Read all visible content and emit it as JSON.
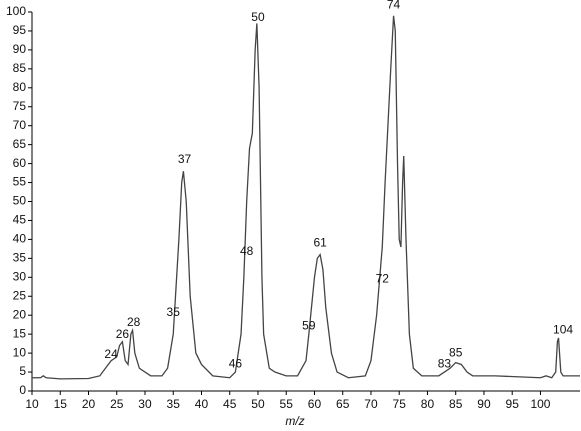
{
  "chart_data": {
    "type": "line",
    "x_label": "m/z",
    "x": [
      10,
      11.5,
      12,
      12.5,
      15,
      20,
      22,
      23,
      24,
      25,
      25.5,
      26,
      26.5,
      27,
      27.5,
      27.8,
      28.2,
      29,
      31,
      33,
      34,
      35,
      36,
      36.5,
      36.8,
      37.3,
      38,
      39,
      40,
      42,
      45,
      46,
      47,
      47.5,
      48,
      48.5,
      49,
      49.5,
      49.8,
      50.2,
      50.7,
      51,
      52,
      53,
      55,
      57,
      58.5,
      59,
      60,
      60.5,
      61,
      61.5,
      62,
      63,
      64,
      66,
      69,
      70,
      71,
      72,
      72.5,
      73,
      73.5,
      74,
      74.3,
      74.7,
      75,
      75.3,
      75.6,
      75.8,
      76.2,
      76.8,
      77.5,
      79,
      82,
      83,
      84,
      85,
      86,
      87,
      88,
      92,
      100,
      101,
      102,
      102.7,
      103,
      103.2,
      103.6,
      104,
      107
    ],
    "series": [
      {
        "color": "#444444",
        "values": [
          3.5,
          3.5,
          4,
          3.5,
          3.2,
          3.3,
          4,
          6,
          8,
          9,
          12,
          13,
          8,
          7,
          15,
          16,
          10,
          6,
          4,
          4,
          6,
          15,
          40,
          55,
          58,
          50,
          25,
          10,
          7,
          4,
          3.5,
          5,
          15,
          30,
          50,
          64,
          68,
          90,
          97,
          80,
          30,
          15,
          6,
          5,
          4,
          4,
          8,
          15,
          30,
          35,
          36,
          32,
          22,
          10,
          5,
          3.5,
          4,
          8,
          20,
          38,
          55,
          70,
          85,
          99,
          95,
          60,
          40,
          38,
          55,
          62,
          40,
          15,
          6,
          4,
          4,
          5,
          6,
          7.5,
          7,
          5,
          4,
          4,
          3.5,
          4,
          3.5,
          5,
          13,
          14,
          5,
          4,
          4
        ]
      }
    ],
    "peak_labels": [
      {
        "x": 24,
        "y": 9.5
      },
      {
        "x": 26,
        "y": 14.8
      },
      {
        "x": 28,
        "y": 18
      },
      {
        "x": 35,
        "y": 20.6
      },
      {
        "x": 37,
        "y": 61
      },
      {
        "x": 46,
        "y": 7
      },
      {
        "x": 48,
        "y": 36.7
      },
      {
        "x": 50,
        "y": 98.4
      },
      {
        "x": 59,
        "y": 17
      },
      {
        "x": 61,
        "y": 39
      },
      {
        "x": 72,
        "y": 29.5
      },
      {
        "x": 74,
        "y": 101.8
      },
      {
        "x": 83,
        "y": 7
      },
      {
        "x": 85,
        "y": 10
      },
      {
        "x": 104,
        "y": 16
      }
    ],
    "xlim": [
      10,
      107
    ],
    "xticks": [
      10,
      15,
      20,
      25,
      30,
      35,
      40,
      45,
      50,
      55,
      60,
      65,
      70,
      75,
      80,
      85,
      90,
      95,
      100
    ],
    "ylim": [
      0,
      100
    ],
    "yticks": [
      0,
      5,
      10,
      15,
      20,
      25,
      30,
      35,
      40,
      45,
      50,
      55,
      60,
      65,
      70,
      75,
      80,
      85,
      90,
      95,
      100
    ]
  }
}
